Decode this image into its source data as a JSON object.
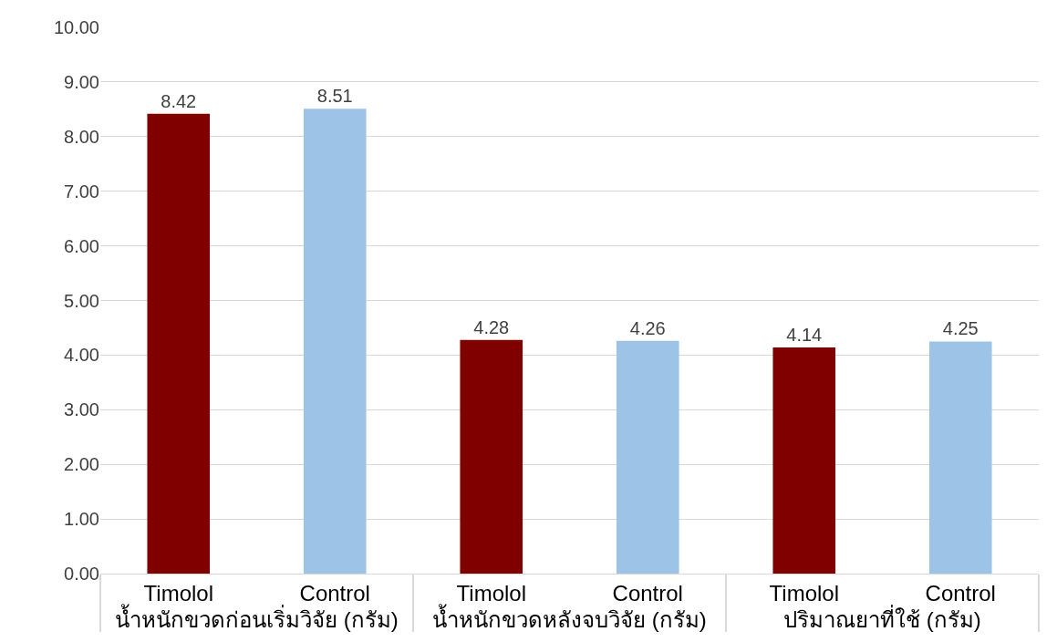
{
  "chart_data": {
    "type": "bar",
    "categories": [
      "น้ำหนักขวดก่อนเริ่มวิจัย (กรัม)",
      "น้ำหนักขวดหลังจบวิจัย (กรัม)",
      "ปริมาณยาที่ใช้ (กรัม)"
    ],
    "series": [
      {
        "name": "Timolol",
        "color": "#800000",
        "values": [
          8.42,
          4.28,
          4.14
        ]
      },
      {
        "name": "Control",
        "color": "#9dc3e6",
        "values": [
          8.51,
          4.26,
          4.25
        ]
      }
    ],
    "ylim": [
      0,
      10
    ],
    "yticks": [
      {
        "value": 0,
        "label": "0.00"
      },
      {
        "value": 1,
        "label": "1.00"
      },
      {
        "value": 2,
        "label": "2.00"
      },
      {
        "value": 3,
        "label": "3.00"
      },
      {
        "value": 4,
        "label": "4.00"
      },
      {
        "value": 5,
        "label": "5.00"
      },
      {
        "value": 6,
        "label": "6.00"
      },
      {
        "value": 7,
        "label": "7.00"
      },
      {
        "value": 8,
        "label": "8.00"
      },
      {
        "value": 9,
        "label": "9.00"
      },
      {
        "value": 10,
        "label": "10.00"
      }
    ],
    "grid": "y",
    "data_labels": true,
    "legend": false
  }
}
